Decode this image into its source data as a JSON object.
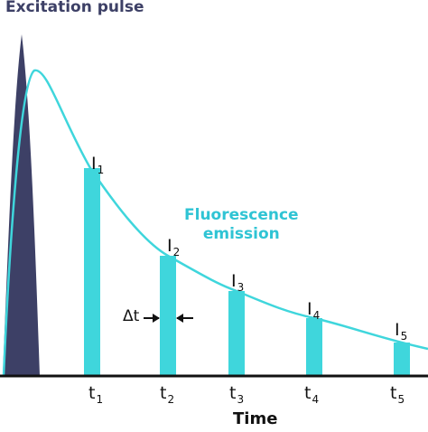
{
  "labels": {
    "excitation": "Excitation pulse",
    "emission_line1": "Fluorescence",
    "emission_line2": "emission",
    "delta": "Δt",
    "x_axis": "Time"
  },
  "intensity_labels": [
    {
      "base": "I",
      "sub": "1"
    },
    {
      "base": "I",
      "sub": "2"
    },
    {
      "base": "I",
      "sub": "3"
    },
    {
      "base": "I",
      "sub": "4"
    },
    {
      "base": "I",
      "sub": "5"
    }
  ],
  "time_labels": [
    {
      "base": "t",
      "sub": "1"
    },
    {
      "base": "t",
      "sub": "2"
    },
    {
      "base": "t",
      "sub": "3"
    },
    {
      "base": "t",
      "sub": "4"
    },
    {
      "base": "t",
      "sub": "5"
    }
  ],
  "colors": {
    "pulse": "#3d4066",
    "emission": "#3fd6dc",
    "axis": "#111111"
  }
}
